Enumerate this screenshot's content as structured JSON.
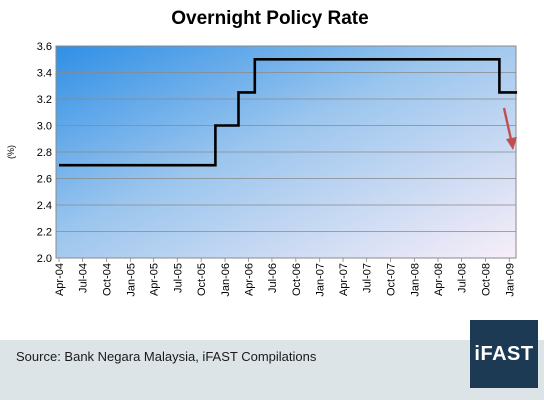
{
  "chart_data": {
    "type": "line",
    "title": "Overnight Policy Rate",
    "ylabel": "(%)",
    "xlabel": "",
    "ylim": [
      2.0,
      3.6
    ],
    "y_ticks": [
      "2.0",
      "2.2",
      "2.4",
      "2.6",
      "2.8",
      "3.0",
      "3.2",
      "3.4",
      "3.6"
    ],
    "x_ticks": [
      "Apr-04",
      "Jul-04",
      "Oct-04",
      "Jan-05",
      "Apr-05",
      "Jul-05",
      "Oct-05",
      "Jan-06",
      "Apr-06",
      "Jul-06",
      "Oct-06",
      "Jan-07",
      "Apr-07",
      "Jul-07",
      "Oct-07",
      "Jan-08",
      "Apr-08",
      "Jul-08",
      "Oct-08",
      "Jan-09"
    ],
    "grid": true,
    "series": [
      {
        "x": [
          "2004-04-01",
          "2005-11-25",
          "2005-11-25",
          "2006-02-22",
          "2006-02-22",
          "2006-04-26",
          "2006-04-26",
          "2008-11-24",
          "2008-11-24",
          "2009-01-31"
        ],
        "y": [
          2.7,
          2.7,
          3.0,
          3.0,
          3.25,
          3.25,
          3.5,
          3.5,
          3.25,
          3.25
        ]
      }
    ],
    "annotation": {
      "type": "arrow",
      "direction": "down",
      "color": "#c0504d"
    }
  },
  "source": "Source: Bank Negara Malaysia, iFAST Compilations",
  "logo_text": "iFAST",
  "colors": {
    "plot_bg_start": "#2f8fe6",
    "plot_bg_end": "#f8eef8",
    "line": "#000000",
    "arrow": "#c0504d",
    "footer_bg": "#dde4e8",
    "logo_bg": "#1d3a55"
  }
}
